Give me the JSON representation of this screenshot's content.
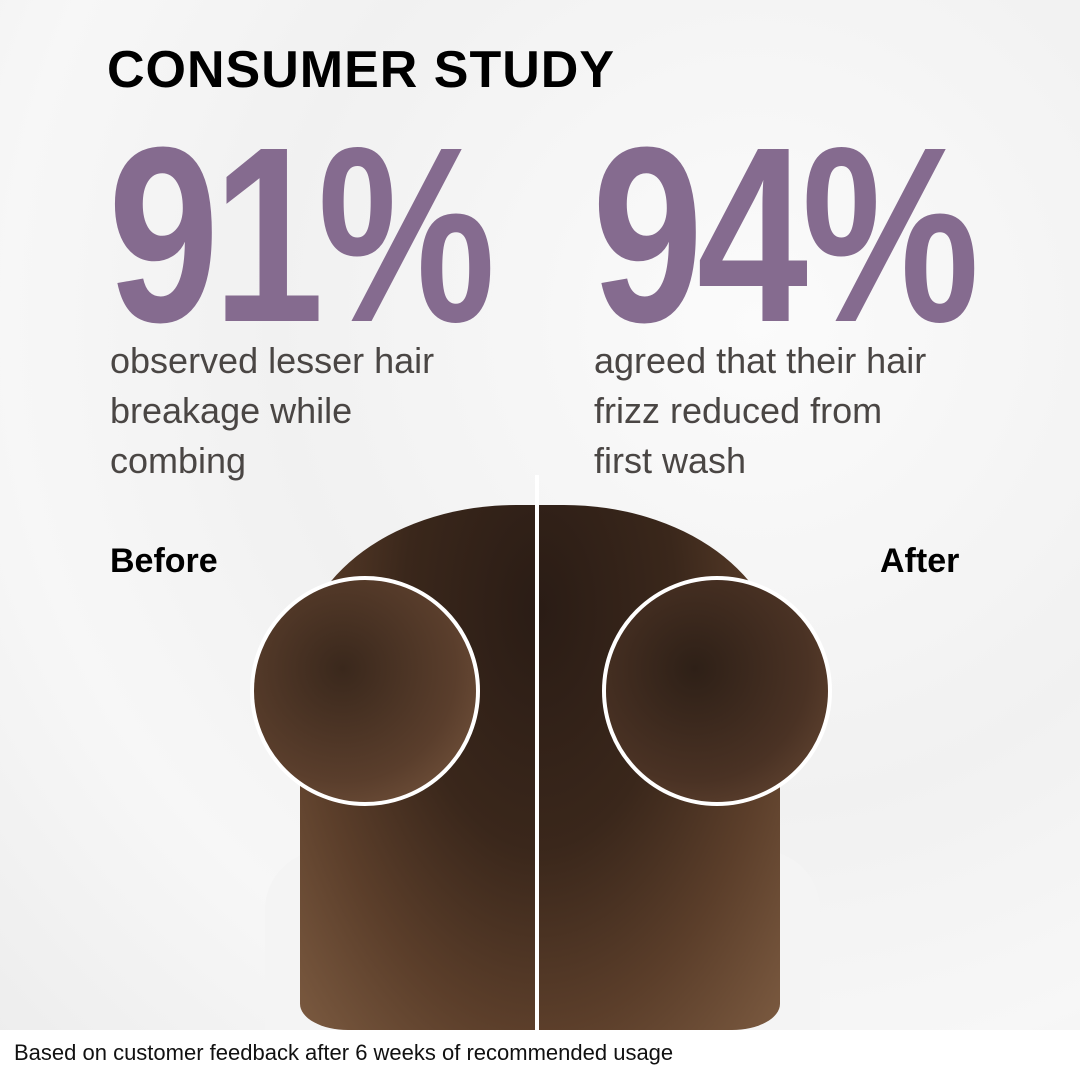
{
  "title": "CONSUMER STUDY",
  "stats": [
    {
      "value": "91%",
      "description": [
        "observed lesser hair",
        "breakage while",
        "combing"
      ]
    },
    {
      "value": "94%",
      "description": [
        "agreed that their hair",
        "frizz reduced from",
        "first wash"
      ]
    }
  ],
  "labels": {
    "before": "Before",
    "after": "After"
  },
  "footer": "Based on customer feedback after 6 weeks of recommended usage",
  "colors": {
    "accent": "#856b8f",
    "text": "#4a4644"
  }
}
